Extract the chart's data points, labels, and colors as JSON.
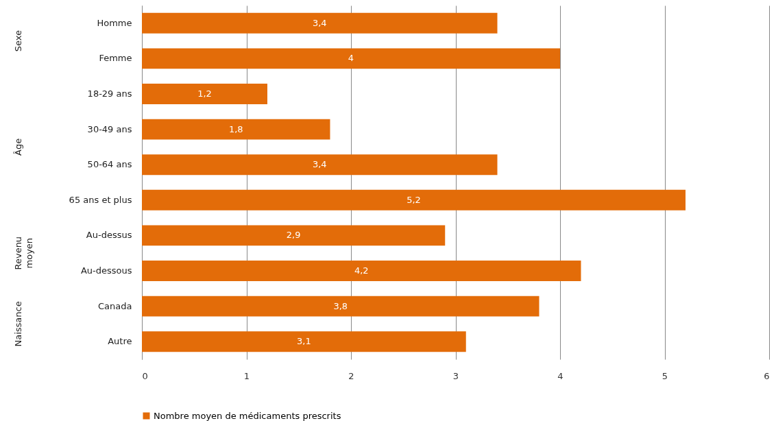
{
  "chart_data": {
    "type": "bar",
    "orientation": "horizontal",
    "categories": [
      "Homme",
      "Femme",
      "18-29 ans",
      "30-49 ans",
      "50-64 ans",
      "65 ans et plus",
      "Au-dessus",
      "Au-dessous",
      "Canada",
      "Autre"
    ],
    "series": [
      {
        "name": "Nombre moyen de médicaments prescrits",
        "color": "#e36c09",
        "values": [
          3.4,
          4,
          1.2,
          1.8,
          3.4,
          5.2,
          2.9,
          4.2,
          3.8,
          3.1
        ],
        "value_labels": [
          "3,4",
          "4",
          "1,2",
          "1,8",
          "3,4",
          "5,2",
          "2,9",
          "4,2",
          "3,8",
          "3,1"
        ]
      }
    ],
    "xlim": [
      0,
      6
    ],
    "xticks": [
      0,
      1,
      2,
      3,
      4,
      5,
      6
    ],
    "grid": "x",
    "legend": "bottom",
    "annotations": [
      "Sexe",
      "Âge",
      "Revenu moyen",
      "Naissance"
    ]
  }
}
